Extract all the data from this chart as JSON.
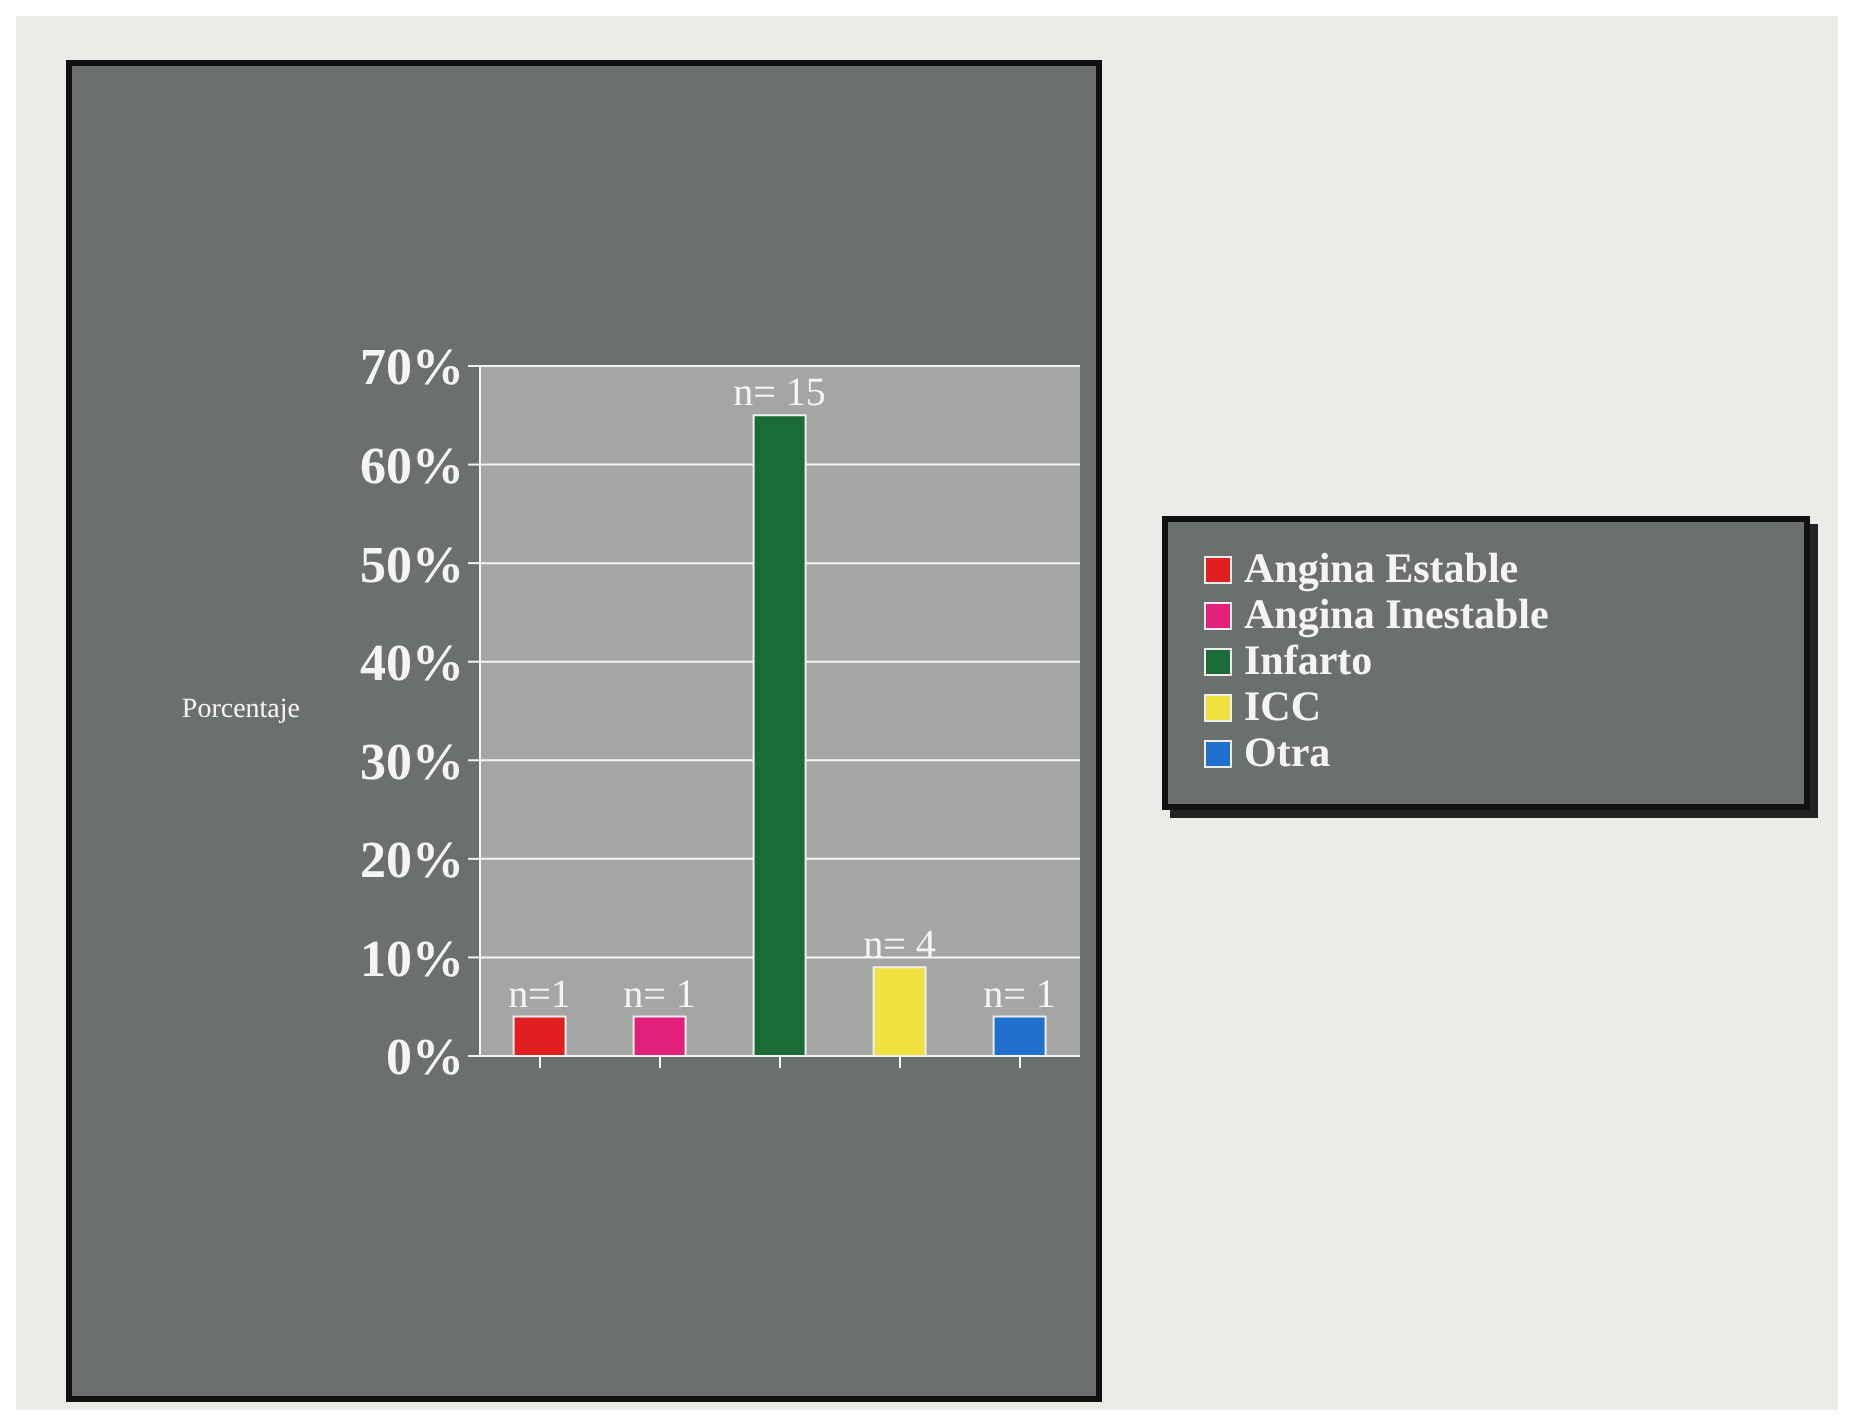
{
  "chart_data": {
    "type": "bar",
    "ylabel": "Porcentaje",
    "categories": [
      null,
      null,
      null,
      null,
      null
    ],
    "series": [
      {
        "name": "Angina Estable",
        "color": "#e02020",
        "values": [
          4,
          null,
          null,
          null,
          null
        ]
      },
      {
        "name": "Angina Inestable",
        "color": "#e0207a",
        "values": [
          null,
          4,
          null,
          null,
          null
        ]
      },
      {
        "name": "Infarto",
        "color": "#1a6b35",
        "values": [
          null,
          null,
          65,
          null,
          null
        ]
      },
      {
        "name": "ICC",
        "color": "#f0e040",
        "values": [
          null,
          null,
          null,
          9,
          null
        ]
      },
      {
        "name": "Otra",
        "color": "#2070d0",
        "values": [
          null,
          null,
          null,
          null,
          4
        ]
      }
    ],
    "annotations": [
      "n=1",
      "n= 1",
      "n= 15",
      "n= 4",
      "n= 1"
    ],
    "ylim": [
      0,
      70
    ],
    "yticks": [
      {
        "value": 0,
        "label": "0%"
      },
      {
        "value": 10,
        "label": "10%"
      },
      {
        "value": 20,
        "label": "20%"
      },
      {
        "value": 30,
        "label": "30%"
      },
      {
        "value": 40,
        "label": "40%"
      },
      {
        "value": 50,
        "label": "50%"
      },
      {
        "value": 60,
        "label": "60%"
      },
      {
        "value": 70,
        "label": "70%"
      }
    ],
    "grid": "y",
    "legend": "right"
  }
}
